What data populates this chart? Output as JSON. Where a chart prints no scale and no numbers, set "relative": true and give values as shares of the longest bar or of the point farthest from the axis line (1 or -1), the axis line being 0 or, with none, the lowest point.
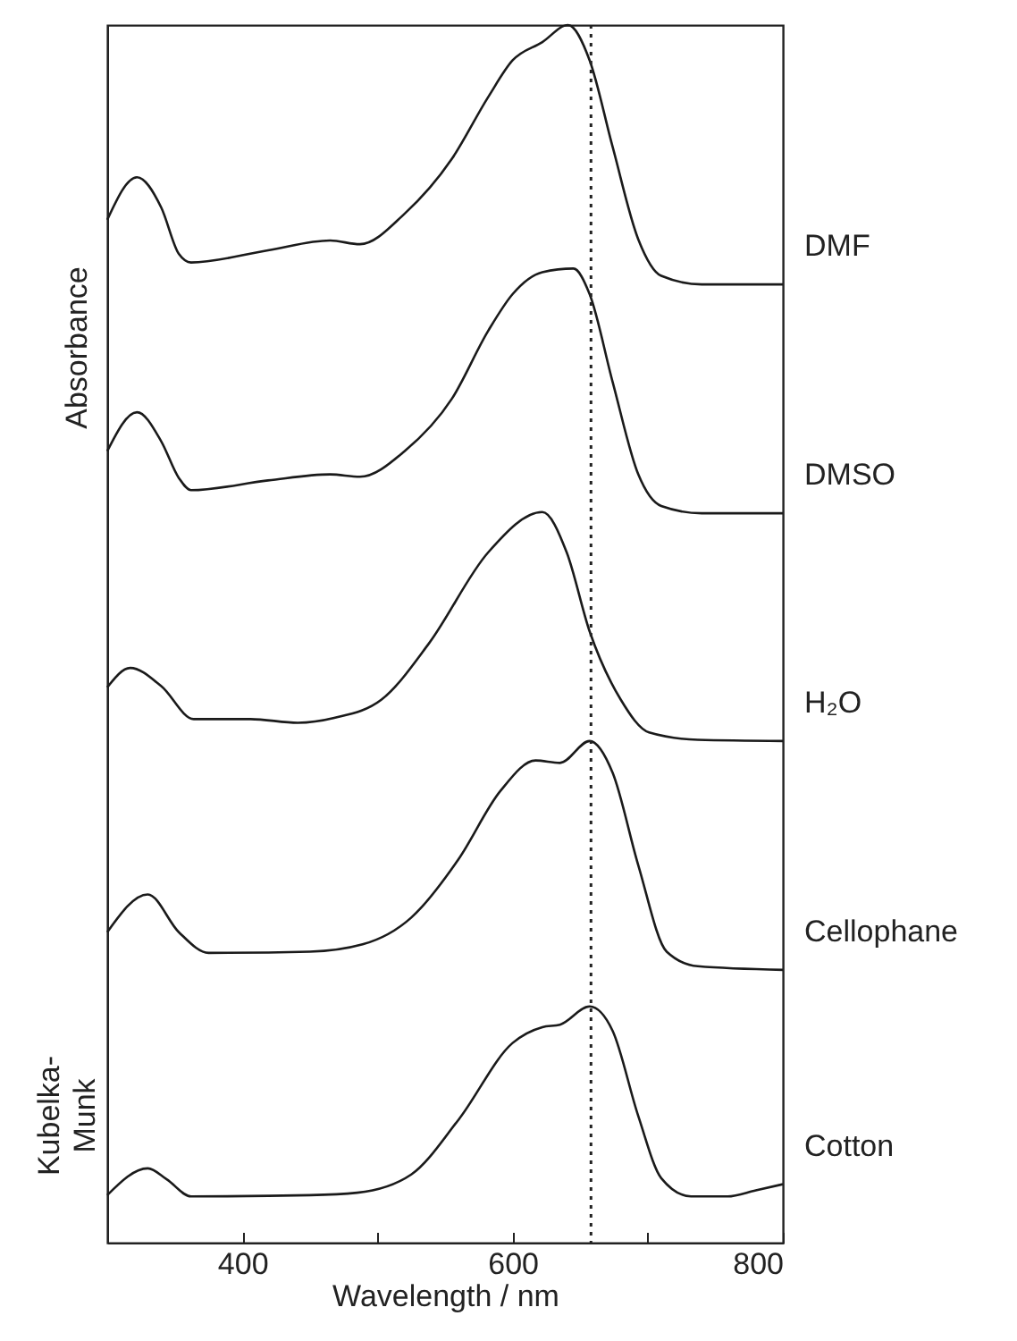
{
  "chart_data": {
    "type": "line",
    "xlabel": "Wavelength / nm",
    "ylabel": "Absorbance",
    "relative": true,
    "xlim": [
      300,
      800
    ],
    "xticks": [
      400,
      {
        "value": 500,
        "label": null
      },
      600,
      {
        "value": 700,
        "label": null
      },
      800
    ],
    "annotations": [
      "Kubelka-Munk"
    ],
    "ref_lines": [
      {
        "axis": "x",
        "value": 658,
        "line_style": "dotted"
      }
    ],
    "series": [
      {
        "name": "DMF",
        "color": "#1a1a1a",
        "x": [
          300,
          322,
          340,
          353,
          362,
          419,
          465,
          487,
          520,
          555,
          582,
          600,
          622,
          641,
          657,
          674,
          693,
          710,
          740,
          800
        ],
        "values": [
          0.84,
          0.875,
          0.85,
          0.812,
          0.805,
          0.815,
          0.823,
          0.82,
          0.845,
          0.89,
          0.941,
          0.971,
          0.986,
          1.0,
          0.971,
          0.9,
          0.824,
          0.794,
          0.787,
          0.787
        ]
      },
      {
        "name": "DMSO",
        "color": "#1a1a1a",
        "x": [
          300,
          322,
          340,
          353,
          362,
          419,
          465,
          487,
          520,
          555,
          582,
          600,
          622,
          645,
          657,
          674,
          693,
          710,
          740,
          800
        ],
        "values": [
          0.65,
          0.682,
          0.658,
          0.628,
          0.618,
          0.626,
          0.631,
          0.629,
          0.65,
          0.693,
          0.749,
          0.779,
          0.797,
          0.8,
          0.779,
          0.707,
          0.631,
          0.605,
          0.599,
          0.599
        ]
      },
      {
        "name": "H₂O",
        "color": "#1a1a1a",
        "x": [
          300,
          317,
          340,
          364,
          406,
          441,
          468,
          503,
          538,
          582,
          622,
          640,
          657,
          680,
          701,
          737,
          800
        ],
        "values": [
          0.456,
          0.472,
          0.457,
          0.43,
          0.43,
          0.427,
          0.431,
          0.446,
          0.492,
          0.567,
          0.6,
          0.567,
          0.502,
          0.446,
          0.419,
          0.413,
          0.412
        ]
      },
      {
        "name": "Cellophane",
        "color": "#1a1a1a",
        "x": [
          300,
          330,
          353,
          375,
          450,
          489,
          525,
          560,
          591,
          617,
          635,
          657,
          674,
          693,
          714,
          737,
          800
        ],
        "values": [
          0.255,
          0.286,
          0.255,
          0.238,
          0.239,
          0.245,
          0.267,
          0.315,
          0.371,
          0.396,
          0.394,
          0.412,
          0.386,
          0.31,
          0.239,
          0.227,
          0.224
        ]
      },
      {
        "name": "Cotton",
        "color": "#1a1a1a",
        "x": [
          300,
          330,
          344,
          362,
          450,
          485,
          525,
          560,
          600,
          622,
          635,
          657,
          674,
          693,
          710,
          732,
          759,
          780,
          800
        ],
        "values": [
          0.039,
          0.061,
          0.052,
          0.038,
          0.039,
          0.041,
          0.056,
          0.101,
          0.164,
          0.177,
          0.179,
          0.194,
          0.174,
          0.104,
          0.053,
          0.038,
          0.038,
          0.043,
          0.048
        ]
      }
    ]
  }
}
